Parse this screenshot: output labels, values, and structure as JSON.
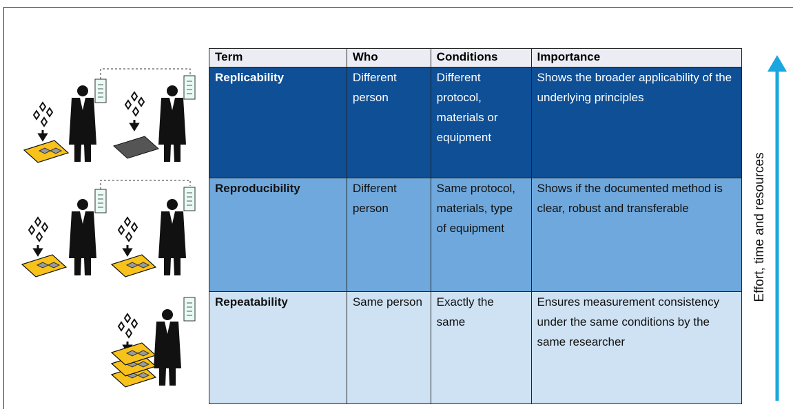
{
  "table": {
    "header": [
      "Term",
      "Who",
      "Conditions",
      "Importance"
    ],
    "rows": [
      [
        "Replicability",
        "Different person",
        "Different protocol, materials or equipment",
        "Shows the broader applicability of the underlying principles"
      ],
      [
        "Reproducibility",
        "Different person",
        "Same protocol, materials, type of equipment",
        "Shows if the documented method is clear, robust and transferable"
      ],
      [
        "Repeatability",
        "Same person",
        "Exactly the same",
        "Ensures measurement consistency under the same conditions by the same researcher"
      ]
    ]
  },
  "side_label": "Effort, time and resources"
}
